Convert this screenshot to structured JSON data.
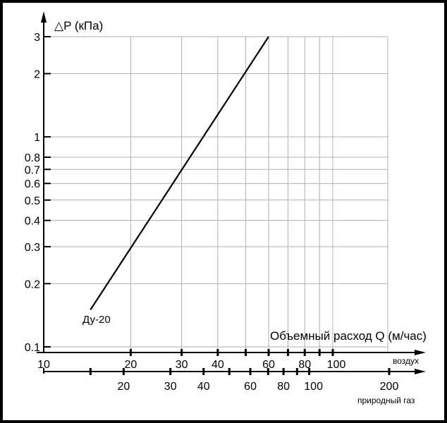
{
  "chart_data": {
    "type": "line",
    "x_scale": "log",
    "y_scale": "log",
    "ylabel": "△P (кПа)",
    "xlabel": "Объемный расход Q (м/час)",
    "ylim": [
      0.1,
      3
    ],
    "air_axis": {
      "label": "воздух",
      "range": [
        10,
        100
      ],
      "tick_labels": [
        "10",
        "20",
        "30",
        "40",
        "60",
        "80",
        "100"
      ],
      "tick_values": [
        10,
        20,
        30,
        40,
        60,
        80,
        100
      ],
      "minor_ticks": [
        50,
        70,
        90
      ]
    },
    "gas_axis": {
      "label": "природный газ",
      "tick_labels": [
        "20",
        "30",
        "40",
        "60",
        "80",
        "100",
        "200"
      ],
      "tick_values": [
        20,
        30,
        40,
        60,
        80,
        100,
        200
      ],
      "minor_ticks": [
        15,
        50,
        70,
        90
      ]
    },
    "y_ticks": {
      "labels": [
        "0.1",
        "0.2",
        "0.3",
        "0.4",
        "0.5",
        "0.6",
        "0.7",
        "0.8",
        "1",
        "2",
        "3"
      ],
      "values": [
        0.1,
        0.2,
        0.3,
        0.4,
        0.5,
        0.6,
        0.7,
        0.8,
        1,
        2,
        3
      ]
    },
    "x_grid": [
      20,
      30,
      40,
      50,
      60,
      70,
      80,
      90,
      100
    ],
    "grid": true,
    "series": [
      {
        "name": "Ду-20",
        "x": [
          14.5,
          60
        ],
        "y": [
          0.15,
          3
        ]
      }
    ]
  }
}
